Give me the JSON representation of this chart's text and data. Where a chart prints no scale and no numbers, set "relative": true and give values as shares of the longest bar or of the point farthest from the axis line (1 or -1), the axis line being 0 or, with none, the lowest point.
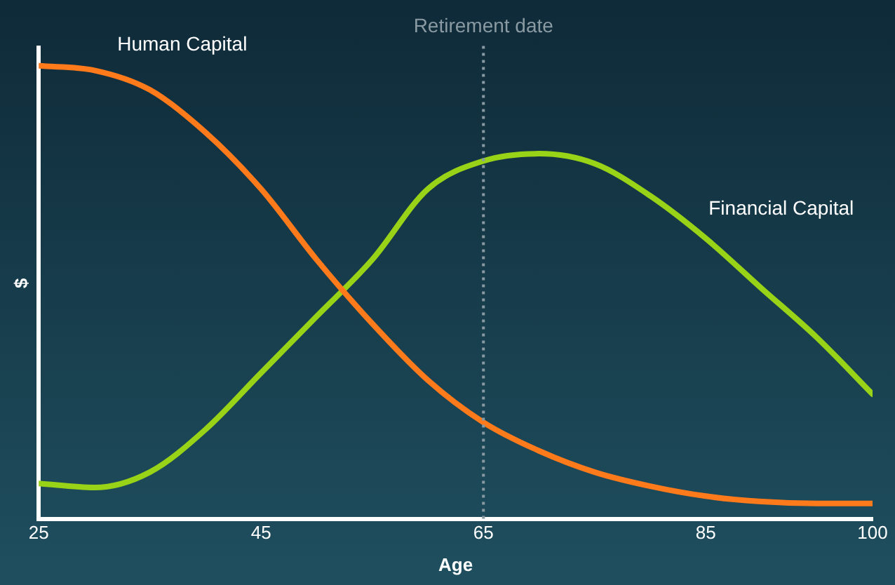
{
  "chart_data": {
    "type": "line",
    "relative": true,
    "xlabel": "Age",
    "ylabel": "$",
    "x": [
      25,
      30,
      35,
      40,
      45,
      50,
      55,
      60,
      65,
      70,
      75,
      80,
      85,
      90,
      95,
      100
    ],
    "xlim": [
      25,
      100
    ],
    "xticks": [
      25,
      45,
      65,
      85,
      100
    ],
    "grid": false,
    "legend": false,
    "marker": "none",
    "line_style": "solid",
    "series": [
      {
        "name": "Human Capital",
        "color": "#ff7a1a",
        "values": [
          1.0,
          0.99,
          0.947,
          0.853,
          0.728,
          0.572,
          0.431,
          0.306,
          0.213,
          0.15,
          0.103,
          0.072,
          0.05,
          0.038,
          0.034,
          0.034
        ]
      },
      {
        "name": "Financial Capital",
        "color": "#99d317",
        "values": [
          0.078,
          0.069,
          0.103,
          0.197,
          0.322,
          0.447,
          0.572,
          0.728,
          0.79,
          0.806,
          0.784,
          0.713,
          0.619,
          0.509,
          0.4,
          0.275
        ]
      }
    ],
    "ref_lines": [
      {
        "axis": "x",
        "value": 65,
        "label": "Retirement date",
        "color": "#8a9aa2",
        "line_style": "dotted"
      }
    ]
  }
}
